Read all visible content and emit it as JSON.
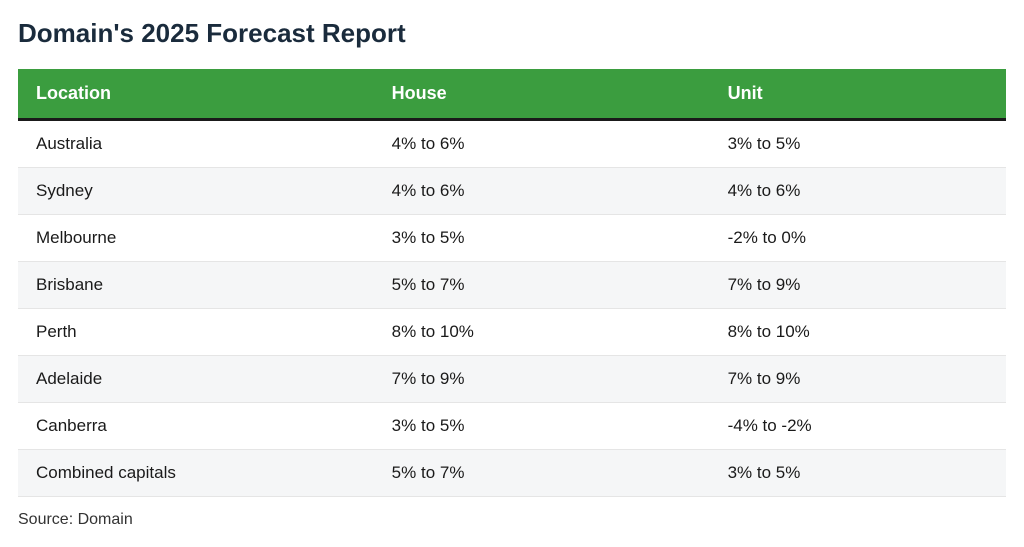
{
  "title": "Domain's 2025 Forecast Report",
  "table": {
    "header_bg": "#3b9d3f",
    "header_text_color": "#ffffff",
    "header_border_bottom": "#1a1a1a",
    "row_alt_bg": "#f5f6f7",
    "row_bg": "#ffffff",
    "row_border": "#e5e5e5",
    "cell_text_color": "#1a1a1a",
    "header_fontsize": 18,
    "cell_fontsize": 17,
    "columns": [
      "Location",
      "House",
      "Unit"
    ],
    "rows": [
      [
        "Australia",
        "4% to 6%",
        "3% to 5%"
      ],
      [
        "Sydney",
        "4% to 6%",
        "4% to 6%"
      ],
      [
        "Melbourne",
        "3% to 5%",
        "-2% to 0%"
      ],
      [
        "Brisbane",
        "5% to 7%",
        "7% to 9%"
      ],
      [
        "Perth",
        "8% to 10%",
        "8% to 10%"
      ],
      [
        "Adelaide",
        "7% to 9%",
        "7% to 9%"
      ],
      [
        "Canberra",
        "3% to 5%",
        "-4% to -2%"
      ],
      [
        "Combined capitals",
        "5% to 7%",
        "3% to 5%"
      ]
    ]
  },
  "source": "Source: Domain"
}
